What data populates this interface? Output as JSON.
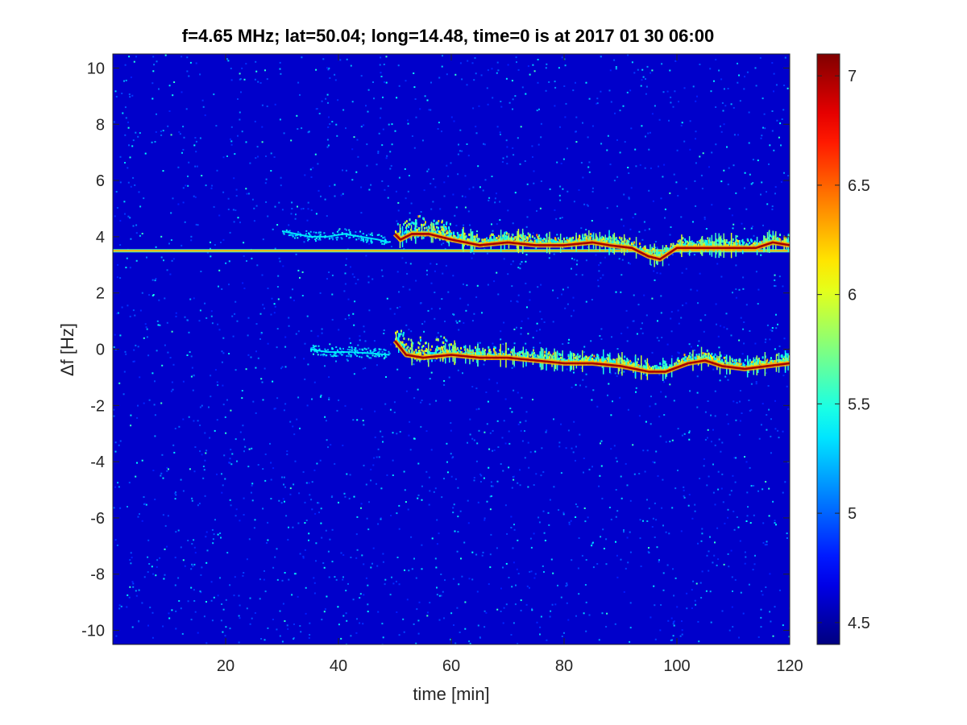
{
  "chart_data": {
    "type": "heatmap",
    "title": "f=4.65 MHz;  lat=50.04; long=14.48, time=0 is at 2017 01 30 06:00",
    "xlabel": "time [min]",
    "ylabel": "Δf [Hz]",
    "xlim": [
      0,
      120
    ],
    "ylim": [
      -10.5,
      10.5
    ],
    "xticks": [
      20,
      40,
      60,
      80,
      100,
      120
    ],
    "yticks": [
      10,
      8,
      6,
      4,
      2,
      0,
      -2,
      -4,
      -6,
      -8,
      -10
    ],
    "colorbar": {
      "colormap": "jet",
      "range": [
        4.4,
        7.1
      ],
      "ticks": [
        4.5,
        5,
        5.5,
        6,
        6.5,
        7
      ]
    },
    "background_level": 4.6,
    "features": [
      {
        "kind": "steady-line",
        "level": 6.3,
        "points": [
          [
            0,
            3.5
          ],
          [
            120,
            3.5
          ]
        ]
      },
      {
        "kind": "faint-trace",
        "level": 5.4,
        "points": [
          [
            30,
            4.2
          ],
          [
            35,
            4.0
          ],
          [
            38,
            4.0
          ],
          [
            41,
            4.1
          ],
          [
            44,
            4.0
          ],
          [
            47,
            3.9
          ],
          [
            49,
            3.8
          ]
        ]
      },
      {
        "kind": "doppler-trace",
        "level": 7.0,
        "points": [
          [
            50,
            4.1
          ],
          [
            51,
            3.9
          ],
          [
            53,
            4.1
          ],
          [
            56,
            4.1
          ],
          [
            60,
            3.9
          ],
          [
            65,
            3.7
          ],
          [
            70,
            3.8
          ],
          [
            75,
            3.7
          ],
          [
            80,
            3.7
          ],
          [
            85,
            3.8
          ],
          [
            88,
            3.7
          ],
          [
            92,
            3.6
          ],
          [
            95,
            3.3
          ],
          [
            97,
            3.2
          ],
          [
            100,
            3.6
          ],
          [
            105,
            3.6
          ],
          [
            110,
            3.6
          ],
          [
            114,
            3.6
          ],
          [
            117,
            3.8
          ],
          [
            120,
            3.7
          ]
        ]
      },
      {
        "kind": "faint-trace",
        "level": 5.4,
        "points": [
          [
            35,
            0.0
          ],
          [
            38,
            -0.1
          ],
          [
            42,
            -0.1
          ],
          [
            46,
            -0.15
          ],
          [
            49,
            -0.2
          ]
        ]
      },
      {
        "kind": "doppler-trace",
        "level": 7.0,
        "points": [
          [
            50,
            0.3
          ],
          [
            52,
            -0.2
          ],
          [
            55,
            -0.3
          ],
          [
            60,
            -0.2
          ],
          [
            65,
            -0.3
          ],
          [
            70,
            -0.3
          ],
          [
            75,
            -0.4
          ],
          [
            80,
            -0.5
          ],
          [
            85,
            -0.5
          ],
          [
            90,
            -0.6
          ],
          [
            95,
            -0.8
          ],
          [
            98,
            -0.8
          ],
          [
            102,
            -0.5
          ],
          [
            105,
            -0.4
          ],
          [
            108,
            -0.6
          ],
          [
            112,
            -0.7
          ],
          [
            116,
            -0.6
          ],
          [
            120,
            -0.5
          ]
        ]
      }
    ]
  }
}
